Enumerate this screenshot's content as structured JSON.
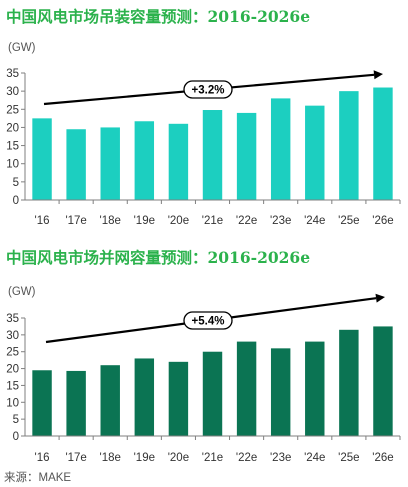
{
  "colors": {
    "title": "#2BB24C",
    "series": [
      "#1CCFC0",
      "#0B7453"
    ],
    "axis": "#7f7f7f",
    "arrow": "#000000"
  },
  "chart_data": [
    {
      "type": "bar",
      "title": "中国风电市场吊装容量预测：2016-2026e",
      "ylabel": "(GW)",
      "categories": [
        "'16",
        "'17e",
        "'18e",
        "'19e",
        "'20e",
        "'21e",
        "'22e",
        "'23e",
        "'24e",
        "'25e",
        "'26e"
      ],
      "values": [
        22.5,
        19.5,
        20,
        21.7,
        21,
        24.8,
        24,
        28,
        26,
        30,
        31
      ],
      "ylim": [
        0,
        35
      ],
      "yticks": [
        0,
        5,
        10,
        15,
        20,
        25,
        30,
        35
      ],
      "annotation": "+3.2%",
      "grid": false,
      "legend": "none"
    },
    {
      "type": "bar",
      "title": "中国风电市场并网容量预测：2016-2026e",
      "ylabel": "(GW)",
      "categories": [
        "'16",
        "'17e",
        "'18e",
        "'19e",
        "'20e",
        "'21e",
        "'22e",
        "'23e",
        "'24e",
        "'25e",
        "'26e"
      ],
      "values": [
        19.5,
        19.3,
        21,
        23,
        22,
        25,
        28,
        26,
        28,
        31.5,
        32.5
      ],
      "ylim": [
        0,
        35
      ],
      "yticks": [
        0,
        5,
        10,
        15,
        20,
        25,
        30,
        35
      ],
      "annotation": "+5.4%",
      "grid": false,
      "legend": "none"
    }
  ],
  "source": "来源：MAKE"
}
